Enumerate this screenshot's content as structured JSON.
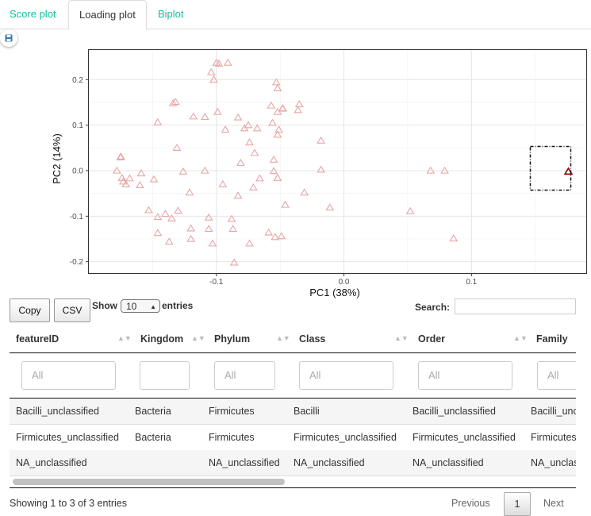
{
  "tabs": [
    {
      "label": "Score plot",
      "active": false
    },
    {
      "label": "Loading plot",
      "active": true
    },
    {
      "label": "Biplot",
      "active": false
    }
  ],
  "save_icon": "floppy-disk-icon",
  "chart_data": {
    "type": "scatter",
    "xlabel": "PC1 (38%)",
    "ylabel": "PC2 (14%)",
    "xlim": [
      -0.2,
      0.19
    ],
    "ylim": [
      -0.225,
      0.265
    ],
    "xticks": [
      -0.1,
      0.0,
      0.1
    ],
    "xtick_labels": [
      "-0.1",
      "0.0",
      "0.1"
    ],
    "yticks": [
      -0.2,
      -0.1,
      0.0,
      0.1,
      0.2
    ],
    "ytick_labels": [
      "-0.2",
      "-0.1",
      "0.0",
      "0.1",
      "0.2"
    ],
    "marker": "open-triangle",
    "color": "#e8a5a5",
    "highlight_color": "#8b0000",
    "grid": true,
    "points": [
      [
        -0.098,
        0.235
      ],
      [
        -0.091,
        0.237
      ],
      [
        -0.1,
        0.237
      ],
      [
        -0.104,
        0.216
      ],
      [
        -0.102,
        0.2
      ],
      [
        -0.053,
        0.194
      ],
      [
        -0.052,
        0.181
      ],
      [
        -0.132,
        0.151
      ],
      [
        -0.134,
        0.148
      ],
      [
        -0.057,
        0.143
      ],
      [
        -0.035,
        0.146
      ],
      [
        -0.036,
        0.133
      ],
      [
        -0.048,
        0.136
      ],
      [
        -0.048,
        0.137
      ],
      [
        -0.099,
        0.129
      ],
      [
        -0.052,
        0.129
      ],
      [
        -0.118,
        0.119
      ],
      [
        -0.109,
        0.118
      ],
      [
        -0.083,
        0.117
      ],
      [
        -0.146,
        0.106
      ],
      [
        -0.075,
        0.1
      ],
      [
        -0.056,
        0.105
      ],
      [
        -0.068,
        0.093
      ],
      [
        -0.078,
        0.093
      ],
      [
        -0.093,
        0.09
      ],
      [
        -0.051,
        0.09
      ],
      [
        -0.052,
        0.079
      ],
      [
        -0.018,
        0.066
      ],
      [
        -0.074,
        0.062
      ],
      [
        -0.131,
        0.05
      ],
      [
        -0.07,
        0.039
      ],
      [
        -0.175,
        0.029
      ],
      [
        -0.175,
        0.031
      ],
      [
        -0.081,
        0.017
      ],
      [
        -0.055,
        0.024
      ],
      [
        -0.178,
        0.0
      ],
      [
        -0.159,
        -0.006
      ],
      [
        -0.109,
        0.0
      ],
      [
        -0.055,
        -0.001
      ],
      [
        -0.126,
        -0.002
      ],
      [
        -0.018,
        0.002
      ],
      [
        -0.174,
        -0.016
      ],
      [
        -0.168,
        -0.017
      ],
      [
        -0.173,
        -0.024
      ],
      [
        -0.171,
        -0.03
      ],
      [
        -0.16,
        -0.032
      ],
      [
        -0.066,
        -0.017
      ],
      [
        -0.052,
        -0.016
      ],
      [
        -0.149,
        -0.019
      ],
      [
        -0.071,
        -0.037
      ],
      [
        -0.095,
        -0.03
      ],
      [
        -0.121,
        -0.048
      ],
      [
        -0.083,
        -0.055
      ],
      [
        -0.031,
        -0.048
      ],
      [
        -0.153,
        -0.087
      ],
      [
        -0.046,
        -0.075
      ],
      [
        -0.011,
        -0.081
      ],
      [
        -0.13,
        -0.088
      ],
      [
        -0.14,
        -0.095
      ],
      [
        -0.146,
        -0.102
      ],
      [
        -0.135,
        -0.105
      ],
      [
        -0.106,
        -0.103
      ],
      [
        -0.088,
        -0.106
      ],
      [
        -0.12,
        -0.127
      ],
      [
        -0.106,
        -0.128
      ],
      [
        -0.087,
        -0.128
      ],
      [
        -0.146,
        -0.137
      ],
      [
        -0.12,
        -0.15
      ],
      [
        -0.059,
        -0.136
      ],
      [
        -0.049,
        -0.144
      ],
      [
        -0.137,
        -0.156
      ],
      [
        -0.103,
        -0.16
      ],
      [
        -0.074,
        -0.16
      ],
      [
        -0.054,
        -0.146
      ],
      [
        -0.086,
        -0.202
      ],
      [
        0.052,
        -0.089
      ],
      [
        0.068,
        0.0
      ],
      [
        0.079,
        0.0
      ],
      [
        0.086,
        -0.149
      ]
    ],
    "highlight_points": [
      [
        0.176,
        -0.002
      ]
    ]
  },
  "table": {
    "buttons": {
      "copy": "Copy",
      "csv": "CSV"
    },
    "length": {
      "prefix": "Show",
      "value": "10",
      "suffix": "entries"
    },
    "search_label": "Search:",
    "search_value": "",
    "columns": [
      "featureID",
      "Kingdom",
      "Phylum",
      "Class",
      "Order",
      "Family"
    ],
    "filters": [
      "All",
      "",
      "All",
      "All",
      "All",
      "All"
    ],
    "rows": [
      [
        "Bacilli_unclassified",
        "Bacteria",
        "Firmicutes",
        "Bacilli",
        "Bacilli_unclassified",
        "Bacilli_unclassified"
      ],
      [
        "Firmicutes_unclassified",
        "Bacteria",
        "Firmicutes",
        "Firmicutes_unclassified",
        "Firmicutes_unclassified",
        "Firmicutes_unclassified"
      ],
      [
        "NA_unclassified",
        "",
        "NA_unclassified",
        "NA_unclassified",
        "NA_unclassified",
        "NA_unclassified"
      ]
    ],
    "info": "Showing 1 to 3 of 3 entries",
    "pagination": {
      "previous": "Previous",
      "current": "1",
      "next": "Next"
    }
  }
}
